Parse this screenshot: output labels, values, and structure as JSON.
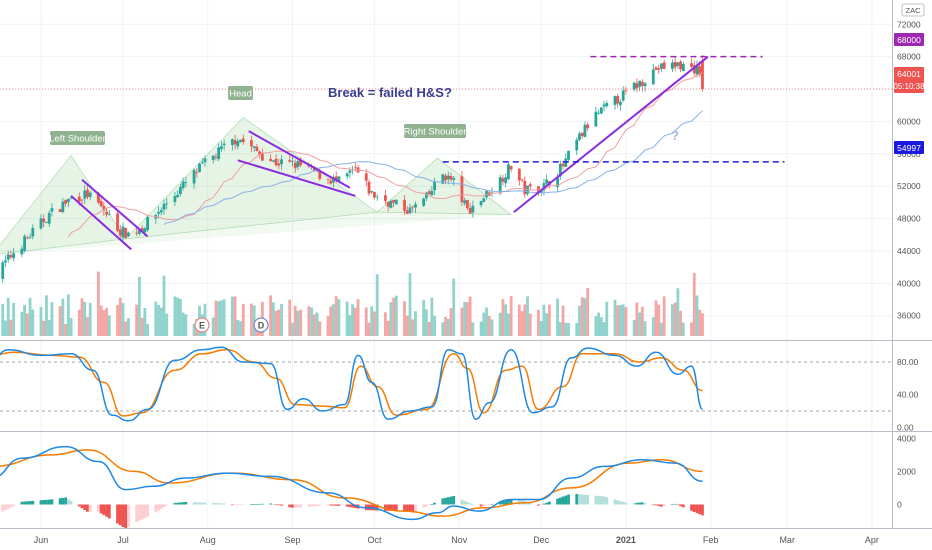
{
  "chart_data": {
    "type": "candlestick",
    "symbol": "ZAC",
    "x_axis": {
      "labels": [
        "Jun",
        "Jul",
        "Aug",
        "Sep",
        "Oct",
        "Nov",
        "Dec",
        "2021",
        "Feb",
        "Mar",
        "Apr"
      ]
    },
    "price_axis": {
      "ticks": [
        "72000",
        "68000",
        "64000",
        "60000",
        "56000",
        "52000",
        "48000",
        "44000",
        "40000",
        "36000"
      ],
      "range": [
        33000,
        75000
      ],
      "grid": true
    },
    "price_labels": {
      "resistance": "68000",
      "last": "64001",
      "countdown": "05:10:38",
      "support": "54997"
    },
    "levels": {
      "resistance": 68000,
      "support": 54997
    },
    "annotations": {
      "left_shoulder": "Left Shoulder",
      "head": "Head",
      "right_shoulder": "Right Shoulder",
      "headline": "Break = failed H&S?",
      "question": "?",
      "earnings_marker": "E",
      "dividend_marker": "D"
    },
    "price_anchors": [
      {
        "x": "2020-05-14",
        "close": 40500
      },
      {
        "x": "2020-05-22",
        "close": 43800
      },
      {
        "x": "2020-06-04",
        "close": 48500
      },
      {
        "x": "2020-06-12",
        "close": 50500
      },
      {
        "x": "2020-06-18",
        "close": 51000
      },
      {
        "x": "2020-06-24",
        "close": 49000
      },
      {
        "x": "2020-06-30",
        "close": 46500
      },
      {
        "x": "2020-07-04",
        "close": 46000
      },
      {
        "x": "2020-07-10",
        "close": 47500
      },
      {
        "x": "2020-07-20",
        "close": 51000
      },
      {
        "x": "2020-07-30",
        "close": 54500
      },
      {
        "x": "2020-08-06",
        "close": 56500
      },
      {
        "x": "2020-08-12",
        "close": 58000
      },
      {
        "x": "2020-08-18",
        "close": 56500
      },
      {
        "x": "2020-08-25",
        "close": 55000
      },
      {
        "x": "2020-09-05",
        "close": 54500
      },
      {
        "x": "2020-09-12",
        "close": 53200
      },
      {
        "x": "2020-09-18",
        "close": 52500
      },
      {
        "x": "2020-09-24",
        "close": 54000
      },
      {
        "x": "2020-09-30",
        "close": 51000
      },
      {
        "x": "2020-10-08",
        "close": 49800
      },
      {
        "x": "2020-10-14",
        "close": 49000
      },
      {
        "x": "2020-10-20",
        "close": 50500
      },
      {
        "x": "2020-10-26",
        "close": 53500
      },
      {
        "x": "2020-10-30",
        "close": 52500
      },
      {
        "x": "2020-11-04",
        "close": 49000
      },
      {
        "x": "2020-11-08",
        "close": 50000
      },
      {
        "x": "2020-11-14",
        "close": 52000
      },
      {
        "x": "2020-11-20",
        "close": 54500
      },
      {
        "x": "2020-11-25",
        "close": 51500
      },
      {
        "x": "2020-12-02",
        "close": 52000
      },
      {
        "x": "2020-12-09",
        "close": 54500
      },
      {
        "x": "2020-12-14",
        "close": 57500
      },
      {
        "x": "2020-12-20",
        "close": 60500
      },
      {
        "x": "2020-12-28",
        "close": 62500
      },
      {
        "x": "2021-01-05",
        "close": 64500
      },
      {
        "x": "2021-01-12",
        "close": 66500
      },
      {
        "x": "2021-01-20",
        "close": 67000
      },
      {
        "x": "2021-01-27",
        "close": 66500
      },
      {
        "x": "2021-01-29",
        "close": 64001
      }
    ],
    "stoch_axis": {
      "ticks": [
        "80.00",
        "40.00",
        "0.00"
      ],
      "levels": [
        80,
        20
      ],
      "range": [
        -2,
        102
      ]
    },
    "stoch_k": [
      {
        "x": "2020-05-14",
        "v": 84
      },
      {
        "x": "2020-05-20",
        "v": 95
      },
      {
        "x": "2020-06-01",
        "v": 88
      },
      {
        "x": "2020-06-12",
        "v": 90
      },
      {
        "x": "2020-06-20",
        "v": 70
      },
      {
        "x": "2020-06-27",
        "v": 15
      },
      {
        "x": "2020-07-03",
        "v": 8
      },
      {
        "x": "2020-07-10",
        "v": 22
      },
      {
        "x": "2020-07-20",
        "v": 82
      },
      {
        "x": "2020-07-30",
        "v": 95
      },
      {
        "x": "2020-08-06",
        "v": 98
      },
      {
        "x": "2020-08-14",
        "v": 80
      },
      {
        "x": "2020-08-24",
        "v": 78
      },
      {
        "x": "2020-08-30",
        "v": 22
      },
      {
        "x": "2020-09-05",
        "v": 35
      },
      {
        "x": "2020-09-12",
        "v": 20
      },
      {
        "x": "2020-09-20",
        "v": 28
      },
      {
        "x": "2020-09-25",
        "v": 88
      },
      {
        "x": "2020-09-30",
        "v": 55
      },
      {
        "x": "2020-10-06",
        "v": 10
      },
      {
        "x": "2020-10-14",
        "v": 20
      },
      {
        "x": "2020-10-22",
        "v": 25
      },
      {
        "x": "2020-10-28",
        "v": 95
      },
      {
        "x": "2020-11-02",
        "v": 90
      },
      {
        "x": "2020-11-07",
        "v": 10
      },
      {
        "x": "2020-11-12",
        "v": 30
      },
      {
        "x": "2020-11-20",
        "v": 95
      },
      {
        "x": "2020-11-28",
        "v": 18
      },
      {
        "x": "2020-12-05",
        "v": 25
      },
      {
        "x": "2020-12-12",
        "v": 85
      },
      {
        "x": "2020-12-18",
        "v": 97
      },
      {
        "x": "2020-12-28",
        "v": 88
      },
      {
        "x": "2021-01-05",
        "v": 75
      },
      {
        "x": "2021-01-12",
        "v": 92
      },
      {
        "x": "2021-01-20",
        "v": 65
      },
      {
        "x": "2021-01-25",
        "v": 75
      },
      {
        "x": "2021-01-29",
        "v": 22
      }
    ],
    "stoch_d": [
      {
        "x": "2020-05-14",
        "v": 88
      },
      {
        "x": "2020-05-22",
        "v": 92
      },
      {
        "x": "2020-06-05",
        "v": 88
      },
      {
        "x": "2020-06-15",
        "v": 86
      },
      {
        "x": "2020-06-24",
        "v": 55
      },
      {
        "x": "2020-07-01",
        "v": 14
      },
      {
        "x": "2020-07-08",
        "v": 18
      },
      {
        "x": "2020-07-20",
        "v": 70
      },
      {
        "x": "2020-07-30",
        "v": 90
      },
      {
        "x": "2020-08-08",
        "v": 95
      },
      {
        "x": "2020-08-18",
        "v": 80
      },
      {
        "x": "2020-08-26",
        "v": 60
      },
      {
        "x": "2020-09-02",
        "v": 28
      },
      {
        "x": "2020-09-12",
        "v": 26
      },
      {
        "x": "2020-09-20",
        "v": 24
      },
      {
        "x": "2020-09-26",
        "v": 75
      },
      {
        "x": "2020-10-02",
        "v": 50
      },
      {
        "x": "2020-10-09",
        "v": 15
      },
      {
        "x": "2020-10-20",
        "v": 22
      },
      {
        "x": "2020-10-30",
        "v": 90
      },
      {
        "x": "2020-11-04",
        "v": 72
      },
      {
        "x": "2020-11-10",
        "v": 18
      },
      {
        "x": "2020-11-18",
        "v": 70
      },
      {
        "x": "2020-11-24",
        "v": 75
      },
      {
        "x": "2020-11-30",
        "v": 22
      },
      {
        "x": "2020-12-09",
        "v": 50
      },
      {
        "x": "2020-12-16",
        "v": 90
      },
      {
        "x": "2020-12-28",
        "v": 90
      },
      {
        "x": "2021-01-06",
        "v": 80
      },
      {
        "x": "2021-01-14",
        "v": 85
      },
      {
        "x": "2021-01-22",
        "v": 70
      },
      {
        "x": "2021-01-29",
        "v": 45
      }
    ],
    "macd_axis": {
      "ticks": [
        "4000",
        "2000",
        "0"
      ],
      "range": [
        -1300,
        4200
      ]
    },
    "macd_line": [
      {
        "x": "2020-05-14",
        "v": 1600
      },
      {
        "x": "2020-05-25",
        "v": 2800
      },
      {
        "x": "2020-06-10",
        "v": 3500
      },
      {
        "x": "2020-06-22",
        "v": 2600
      },
      {
        "x": "2020-07-02",
        "v": 900
      },
      {
        "x": "2020-07-12",
        "v": 1100
      },
      {
        "x": "2020-07-24",
        "v": 1600
      },
      {
        "x": "2020-08-08",
        "v": 1900
      },
      {
        "x": "2020-08-24",
        "v": 1700
      },
      {
        "x": "2020-09-14",
        "v": 700
      },
      {
        "x": "2020-09-28",
        "v": -200
      },
      {
        "x": "2020-10-15",
        "v": -900
      },
      {
        "x": "2020-10-24",
        "v": -500
      },
      {
        "x": "2020-10-30",
        "v": -100
      },
      {
        "x": "2020-11-08",
        "v": -400
      },
      {
        "x": "2020-11-20",
        "v": 300
      },
      {
        "x": "2020-11-30",
        "v": 300
      },
      {
        "x": "2020-12-12",
        "v": 1600
      },
      {
        "x": "2020-12-24",
        "v": 2300
      },
      {
        "x": "2021-01-07",
        "v": 2700
      },
      {
        "x": "2021-01-19",
        "v": 2500
      },
      {
        "x": "2021-01-29",
        "v": 1400
      }
    ],
    "macd_signal": [
      {
        "x": "2020-05-14",
        "v": 2300
      },
      {
        "x": "2020-06-05",
        "v": 3000
      },
      {
        "x": "2020-06-18",
        "v": 3300
      },
      {
        "x": "2020-07-05",
        "v": 2000
      },
      {
        "x": "2020-07-18",
        "v": 1300
      },
      {
        "x": "2020-08-10",
        "v": 1900
      },
      {
        "x": "2020-09-01",
        "v": 1500
      },
      {
        "x": "2020-09-20",
        "v": 400
      },
      {
        "x": "2020-10-12",
        "v": -400
      },
      {
        "x": "2020-10-26",
        "v": -700
      },
      {
        "x": "2020-11-10",
        "v": -200
      },
      {
        "x": "2020-11-25",
        "v": 100
      },
      {
        "x": "2020-12-12",
        "v": 1000
      },
      {
        "x": "2021-01-02",
        "v": 2500
      },
      {
        "x": "2021-01-14",
        "v": 2700
      },
      {
        "x": "2021-01-29",
        "v": 2000
      }
    ]
  }
}
